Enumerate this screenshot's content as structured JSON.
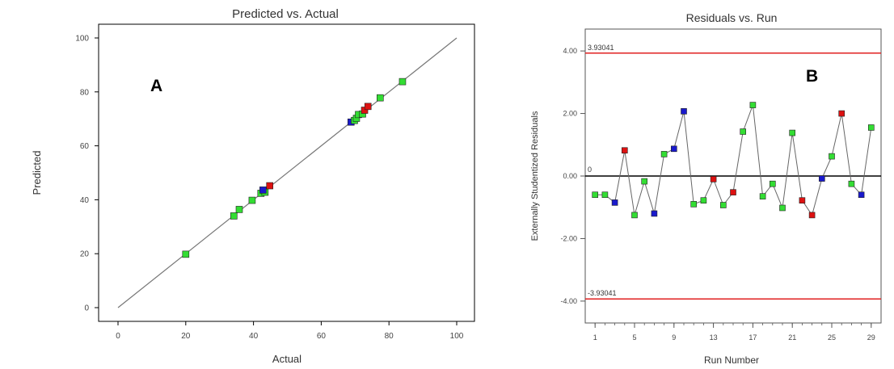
{
  "chart_data": [
    {
      "panel_label": "A",
      "type": "scatter",
      "title": "Predicted vs. Actual",
      "xlabel": "Actual",
      "ylabel": "Predicted",
      "xlim": [
        0,
        100
      ],
      "ylim": [
        0,
        100
      ],
      "xticks": [
        "0",
        "20",
        "40",
        "60",
        "80",
        "100"
      ],
      "yticks": [
        "0",
        "20",
        "40",
        "60",
        "80",
        "100"
      ],
      "reference_line": [
        [
          0,
          0
        ],
        [
          100,
          100
        ]
      ],
      "points": [
        {
          "x": 20.0,
          "y": 19.8,
          "color": "#33dd33"
        },
        {
          "x": 34.2,
          "y": 34.0,
          "color": "#33dd33"
        },
        {
          "x": 35.8,
          "y": 36.4,
          "color": "#33dd33"
        },
        {
          "x": 39.6,
          "y": 39.8,
          "color": "#33dd33"
        },
        {
          "x": 42.2,
          "y": 42.4,
          "color": "#33dd33"
        },
        {
          "x": 43.4,
          "y": 42.8,
          "color": "#33dd33"
        },
        {
          "x": 42.8,
          "y": 43.6,
          "color": "#1a1acc"
        },
        {
          "x": 44.8,
          "y": 45.2,
          "color": "#dd1111"
        },
        {
          "x": 68.8,
          "y": 68.8,
          "color": "#1a1acc"
        },
        {
          "x": 69.8,
          "y": 69.4,
          "color": "#33dd33"
        },
        {
          "x": 70.4,
          "y": 70.2,
          "color": "#33dd33"
        },
        {
          "x": 71.0,
          "y": 71.6,
          "color": "#33dd33"
        },
        {
          "x": 72.2,
          "y": 71.8,
          "color": "#33dd33"
        },
        {
          "x": 72.8,
          "y": 73.2,
          "color": "#dd1111"
        },
        {
          "x": 73.8,
          "y": 74.6,
          "color": "#dd1111"
        },
        {
          "x": 77.4,
          "y": 77.8,
          "color": "#33dd33"
        },
        {
          "x": 84.0,
          "y": 83.8,
          "color": "#33dd33"
        }
      ]
    },
    {
      "panel_label": "B",
      "type": "line",
      "title": "Residuals vs. Run",
      "xlabel": "Run Number",
      "ylabel": "Externally Studentized Residuals",
      "xlim": [
        0,
        30
      ],
      "ylim": [
        -4.7,
        4.7
      ],
      "xticks": [
        "1",
        "5",
        "9",
        "13",
        "17",
        "21",
        "25",
        "29"
      ],
      "yticks": [
        "4.00",
        "2.00",
        "0.00",
        "-2.00",
        "-4.00"
      ],
      "upper_limit": {
        "value": 3.93041,
        "label": "3.93041",
        "color": "#e02020"
      },
      "lower_limit": {
        "value": -3.93041,
        "label": "-3.93041",
        "color": "#e02020"
      },
      "zero_line": {
        "value": 0,
        "label": "0"
      },
      "points": [
        {
          "x": 1,
          "y": -0.6,
          "color": "#33dd33"
        },
        {
          "x": 2,
          "y": -0.6,
          "color": "#33dd33"
        },
        {
          "x": 3,
          "y": -0.85,
          "color": "#1a1acc"
        },
        {
          "x": 4,
          "y": 0.82,
          "color": "#dd1111"
        },
        {
          "x": 5,
          "y": -1.25,
          "color": "#33dd33"
        },
        {
          "x": 6,
          "y": -0.17,
          "color": "#33dd33"
        },
        {
          "x": 7,
          "y": -1.2,
          "color": "#1a1acc"
        },
        {
          "x": 8,
          "y": 0.7,
          "color": "#33dd33"
        },
        {
          "x": 9,
          "y": 0.87,
          "color": "#1a1acc"
        },
        {
          "x": 10,
          "y": 2.07,
          "color": "#1a1acc"
        },
        {
          "x": 11,
          "y": -0.9,
          "color": "#33dd33"
        },
        {
          "x": 12,
          "y": -0.78,
          "color": "#33dd33"
        },
        {
          "x": 13,
          "y": -0.1,
          "color": "#dd1111"
        },
        {
          "x": 14,
          "y": -0.93,
          "color": "#33dd33"
        },
        {
          "x": 15,
          "y": -0.52,
          "color": "#dd1111"
        },
        {
          "x": 16,
          "y": 1.42,
          "color": "#33dd33"
        },
        {
          "x": 17,
          "y": 2.27,
          "color": "#33dd33"
        },
        {
          "x": 18,
          "y": -0.65,
          "color": "#33dd33"
        },
        {
          "x": 19,
          "y": -0.25,
          "color": "#33dd33"
        },
        {
          "x": 20,
          "y": -1.02,
          "color": "#33dd33"
        },
        {
          "x": 21,
          "y": 1.38,
          "color": "#33dd33"
        },
        {
          "x": 22,
          "y": -0.78,
          "color": "#dd1111"
        },
        {
          "x": 23,
          "y": -1.25,
          "color": "#dd1111"
        },
        {
          "x": 24,
          "y": -0.08,
          "color": "#1a1acc"
        },
        {
          "x": 25,
          "y": 0.63,
          "color": "#33dd33"
        },
        {
          "x": 26,
          "y": 2.0,
          "color": "#dd1111"
        },
        {
          "x": 27,
          "y": -0.25,
          "color": "#33dd33"
        },
        {
          "x": 28,
          "y": -0.6,
          "color": "#1a1acc"
        },
        {
          "x": 29,
          "y": 1.55,
          "color": "#33dd33"
        }
      ]
    }
  ]
}
